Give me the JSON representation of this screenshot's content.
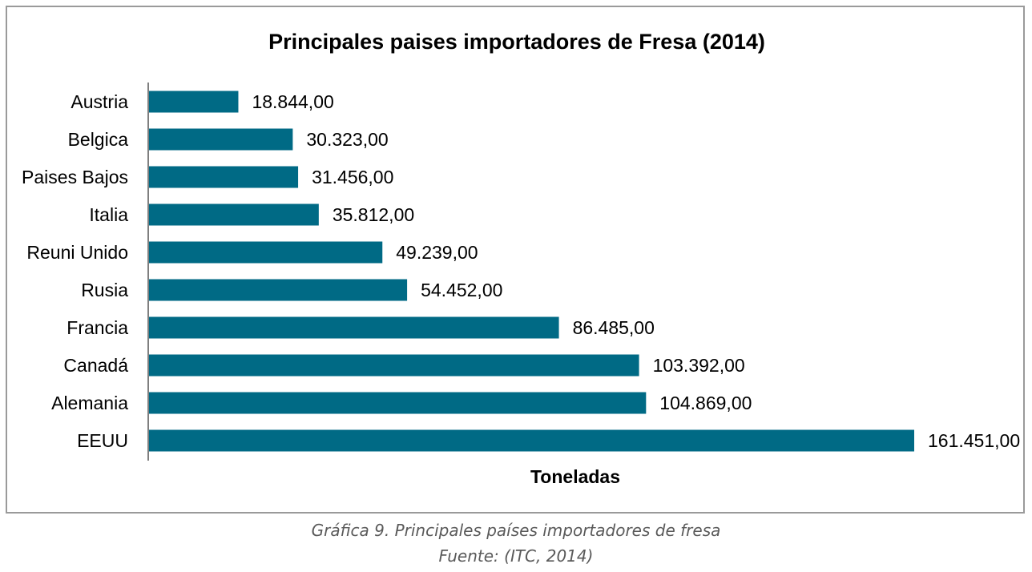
{
  "chart_data": {
    "type": "bar",
    "orientation": "horizontal",
    "title": "Principales paises importadores de Fresa (2014)",
    "xlabel": "Toneladas",
    "ylabel": "",
    "categories": [
      "Austria",
      "Belgica",
      "Paises Bajos",
      "Italia",
      "Reuni Unido",
      "Rusia",
      "Francia",
      "Canadá",
      "Alemania",
      "EEUU"
    ],
    "values": [
      18844,
      30323,
      31456,
      35812,
      49239,
      54452,
      86485,
      103392,
      104869,
      161451
    ],
    "value_labels": [
      "18.844,00",
      "30.323,00",
      "31.456,00",
      "35.812,00",
      "49.239,00",
      "54.452,00",
      "86.485,00",
      "103.392,00",
      "104.869,00",
      "161.451,00"
    ],
    "xlim": [
      0,
      161451
    ],
    "grid": false,
    "legend": "none",
    "bar_color": "#006a85"
  },
  "caption": {
    "line1": "Gráfica 9. Principales países importadores de fresa",
    "line2": "Fuente: (ITC, 2014)"
  }
}
